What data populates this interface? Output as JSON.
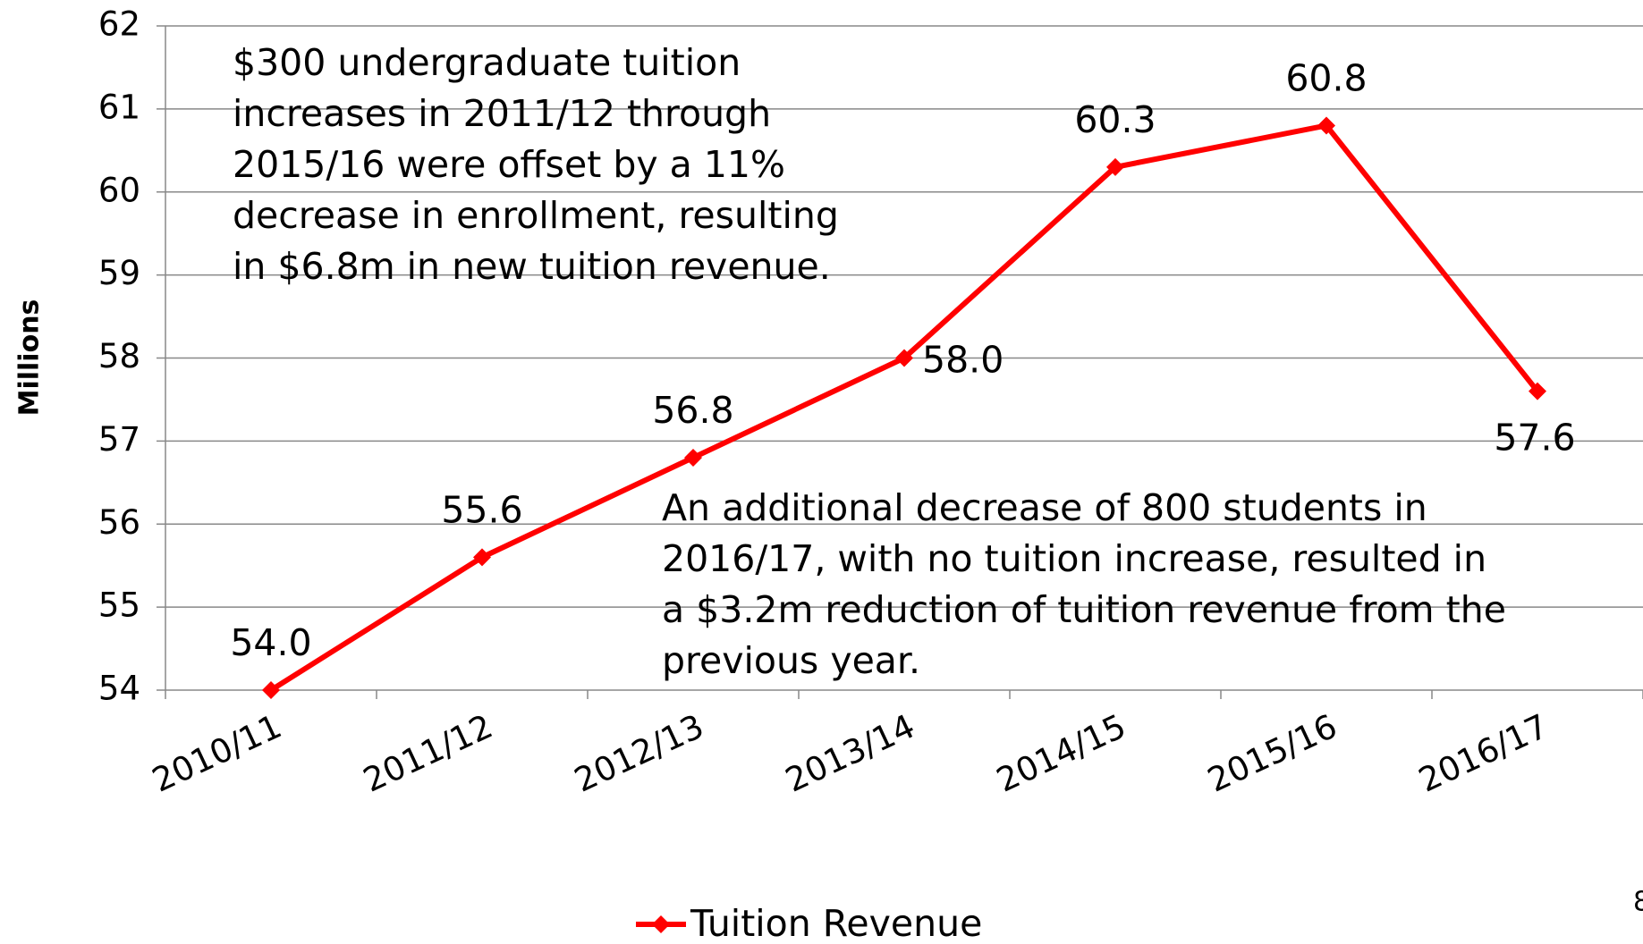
{
  "chart_data": {
    "type": "line",
    "y_label": "Millions",
    "categories": [
      "2010/11",
      "2011/12",
      "2012/13",
      "2013/14",
      "2014/15",
      "2015/16",
      "2016/17"
    ],
    "series": [
      {
        "name": "Tuition Revenue",
        "color": "#ff0000",
        "values": [
          54.0,
          55.6,
          56.8,
          58.0,
          60.3,
          60.8,
          57.6
        ],
        "value_labels": [
          "54.0",
          "55.6",
          "56.8",
          "58.0",
          "60.3",
          "60.8",
          "57.6"
        ]
      }
    ],
    "ylim": [
      54,
      62
    ],
    "yticks": [
      54,
      55,
      56,
      57,
      58,
      59,
      60,
      61,
      62
    ],
    "grid": true,
    "legend": "bottom",
    "annotations": [
      [
        "$300 undergraduate tuition",
        "increases in 2011/12 through",
        "2015/16 were offset by a 11%",
        "decrease in enrollment, resulting",
        "in $6.8m in new tuition revenue."
      ],
      [
        "An additional decrease of 800 students in",
        "2016/17, with no tuition increase, resulted in",
        "a $3.2m reduction of tuition revenue from the",
        "previous year."
      ]
    ],
    "page_number": "8"
  }
}
